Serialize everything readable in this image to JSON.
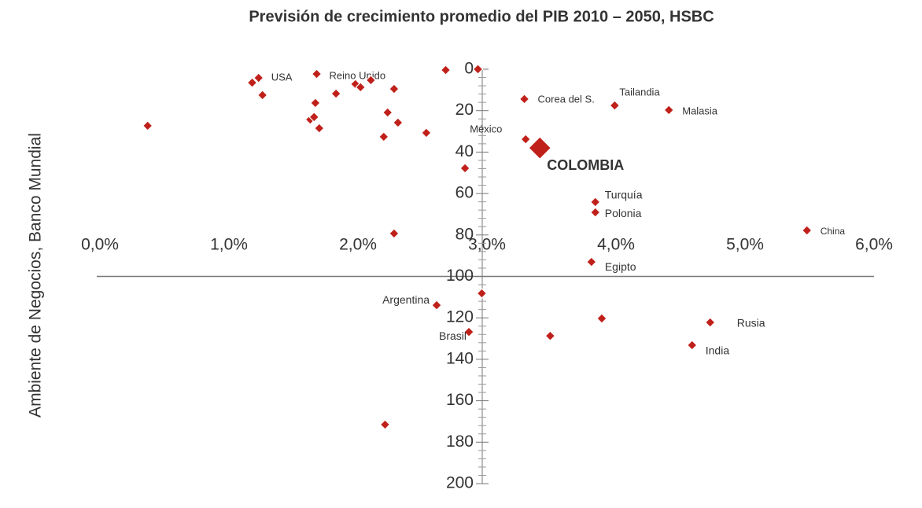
{
  "chart_data": {
    "type": "scatter",
    "title": "Previsión de crecimiento promedio del PIB 2010 – 2050, HSBC",
    "ylabel": "Ambiente de Negocios, Banco Mundial",
    "x": [
      1.23,
      1.18,
      1.26,
      1.68,
      1.98,
      2.02,
      2.1,
      2.28,
      1.83,
      1.67,
      2.23,
      2.31,
      1.63,
      1.66,
      1.7,
      0.37,
      2.2,
      2.53,
      2.68,
      2.93,
      2.83,
      3.29,
      3.99,
      4.41,
      3.3,
      3.41,
      3.84,
      3.84,
      5.48,
      2.28,
      3.81,
      2.96,
      2.61,
      3.89,
      4.73,
      2.86,
      3.49,
      4.59,
      2.21
    ],
    "values": [
      4.2,
      6.5,
      12.5,
      2.3,
      7.2,
      8.7,
      5.3,
      9.5,
      11.8,
      16.3,
      20.9,
      25.8,
      24.3,
      23.1,
      28.5,
      27.3,
      32.6,
      30.7,
      0.4,
      0,
      47.8,
      14.4,
      17.5,
      19.7,
      33.8,
      38,
      64.1,
      69.1,
      77.8,
      79.3,
      93,
      108.2,
      113.9,
      120.3,
      122.2,
      126.8,
      128.7,
      133.2,
      171.5
    ],
    "sizes": [
      6,
      6,
      6,
      6,
      6,
      6,
      6,
      6,
      6,
      6,
      6,
      6,
      6,
      6,
      6,
      6,
      6,
      6,
      6,
      6,
      6,
      6,
      6,
      6,
      6,
      14,
      6,
      6,
      6,
      6,
      6,
      6,
      6,
      6,
      6,
      6,
      6,
      6,
      6
    ],
    "point_labels": [
      "USA",
      null,
      null,
      "Reino Unido",
      null,
      null,
      null,
      null,
      null,
      null,
      null,
      null,
      null,
      null,
      null,
      null,
      null,
      null,
      null,
      null,
      null,
      "Corea del S.",
      "Tailandia",
      "Malasia",
      "México",
      "COLOMBIA",
      "Turquía",
      "Polonia",
      "China",
      null,
      "Egipto",
      null,
      "Argentina",
      null,
      "Rusia",
      "Brasil",
      null,
      "India",
      null
    ],
    "color": "#c0201a",
    "xlim": [
      0,
      6
    ],
    "xticks": [
      {
        "value": 0,
        "label": "0,0%"
      },
      {
        "value": 1,
        "label": "1,0%"
      },
      {
        "value": 2,
        "label": "2,0%"
      },
      {
        "value": 3,
        "label": "3,0%"
      },
      {
        "value": 4,
        "label": "4,0%"
      },
      {
        "value": 5,
        "label": "5,0%"
      },
      {
        "value": 6,
        "label": "6,0%"
      }
    ],
    "ylim": [
      0,
      200
    ],
    "yticks": [
      0,
      20,
      40,
      60,
      80,
      100,
      120,
      140,
      160,
      180,
      200
    ],
    "yminor": 4,
    "y_inverted": true
  }
}
